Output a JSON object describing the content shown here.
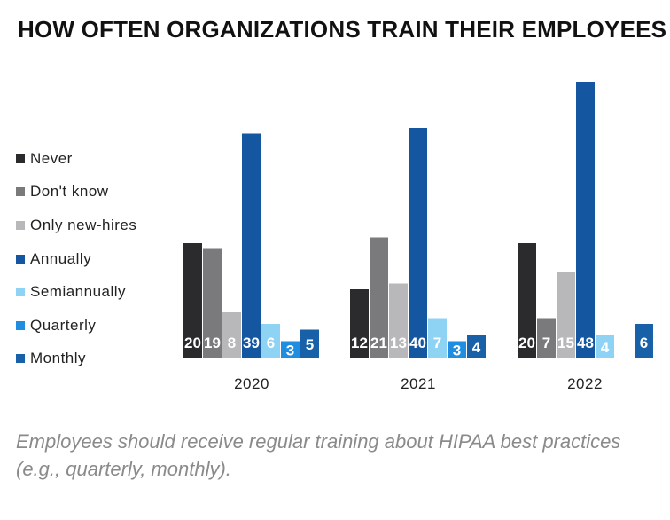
{
  "chart_data": {
    "type": "bar",
    "title": "HOW OFTEN ORGANIZATIONS TRAIN THEIR EMPLOYEES",
    "categories": [
      "2020",
      "2021",
      "2022"
    ],
    "series": [
      {
        "name": "Never",
        "color": "#2b2b2d",
        "values": [
          20,
          12,
          20
        ]
      },
      {
        "name": "Don't know",
        "color": "#7a7a7c",
        "values": [
          19,
          21,
          7
        ]
      },
      {
        "name": "Only new-hires",
        "color": "#b8b7b9",
        "values": [
          8,
          13,
          15
        ]
      },
      {
        "name": "Annually",
        "color": "#1457a0",
        "values": [
          39,
          40,
          48
        ]
      },
      {
        "name": "Semiannually",
        "color": "#8fd3f4",
        "values": [
          6,
          7,
          4
        ]
      },
      {
        "name": "Quarterly",
        "color": "#1f8de0",
        "values": [
          3,
          3,
          null
        ]
      },
      {
        "name": "Monthly",
        "color": "#1860a8",
        "values": [
          5,
          4,
          6
        ]
      }
    ],
    "xlabel": "",
    "ylabel": "",
    "ylim": [
      0,
      48
    ],
    "grid": false,
    "legend": "left"
  },
  "caption": "Employees should receive regular training about HIPAA best practices (e.g., quarterly, monthly)."
}
